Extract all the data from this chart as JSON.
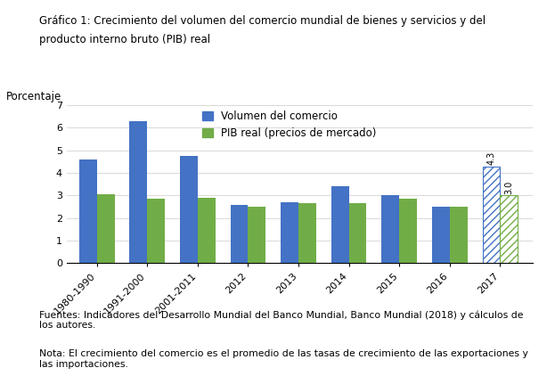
{
  "title_line1": "Gráfico 1: Crecimiento del volumen del comercio mundial de bienes y servicios y del",
  "title_line2": "producto interno bruto (PIB) real",
  "ylabel": "Porcentaje",
  "categories": [
    "1980-1990",
    "1991-2000",
    "2001-2011",
    "2012",
    "2013",
    "2014",
    "2015",
    "2016",
    "2017"
  ],
  "trade_volume": [
    4.6,
    6.3,
    4.75,
    2.6,
    2.7,
    3.4,
    3.0,
    2.5,
    4.3
  ],
  "gdp_real": [
    3.05,
    2.85,
    2.9,
    2.5,
    2.65,
    2.65,
    2.85,
    2.5,
    3.0
  ],
  "trade_color": "#4472C4",
  "gdp_color": "#70AD47",
  "ylim": [
    0,
    7
  ],
  "yticks": [
    0,
    1,
    2,
    3,
    4,
    5,
    6,
    7
  ],
  "legend_labels": [
    "Volumen del comercio",
    "PIB real (precios de mercado)"
  ],
  "forecast_index": 8,
  "forecast_label_trade": "4.3",
  "forecast_label_gdp": "3.0",
  "footnote1": "Fuentes: Indicadores del Desarrollo Mundial del Banco Mundial, Banco Mundial (2018) y cálculos de\nlos autores.",
  "footnote2": "Nota: El crecimiento del comercio es el promedio de las tasas de crecimiento de las exportaciones y\nlas importaciones."
}
